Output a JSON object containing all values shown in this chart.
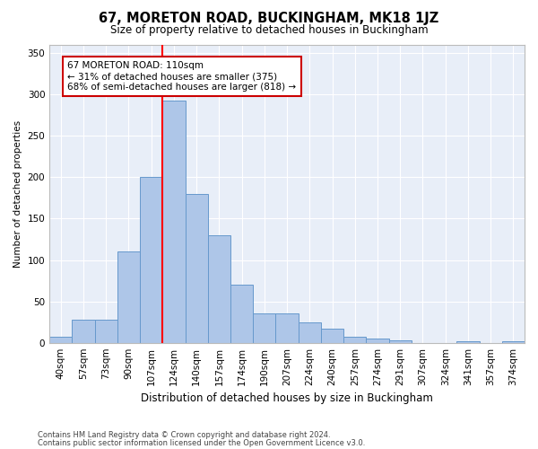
{
  "title": "67, MORETON ROAD, BUCKINGHAM, MK18 1JZ",
  "subtitle": "Size of property relative to detached houses in Buckingham",
  "xlabel": "Distribution of detached houses by size in Buckingham",
  "ylabel": "Number of detached properties",
  "categories": [
    "40sqm",
    "57sqm",
    "73sqm",
    "90sqm",
    "107sqm",
    "124sqm",
    "140sqm",
    "157sqm",
    "174sqm",
    "190sqm",
    "207sqm",
    "224sqm",
    "240sqm",
    "257sqm",
    "274sqm",
    "291sqm",
    "307sqm",
    "324sqm",
    "341sqm",
    "357sqm",
    "374sqm"
  ],
  "values": [
    7,
    28,
    28,
    110,
    200,
    293,
    180,
    130,
    70,
    35,
    35,
    25,
    17,
    7,
    5,
    3,
    0,
    0,
    2,
    0,
    2
  ],
  "bar_color": "#aec6e8",
  "bar_edge_color": "#6699cc",
  "background_color": "#e8eef8",
  "grid_color": "#ffffff",
  "red_line_x": 4.5,
  "annotation_text": "67 MORETON ROAD: 110sqm\n← 31% of detached houses are smaller (375)\n68% of semi-detached houses are larger (818) →",
  "annotation_box_color": "#ffffff",
  "annotation_box_edge_color": "#cc0000",
  "ylim": [
    0,
    360
  ],
  "yticks": [
    0,
    50,
    100,
    150,
    200,
    250,
    300,
    350
  ],
  "footer1": "Contains HM Land Registry data © Crown copyright and database right 2024.",
  "footer2": "Contains public sector information licensed under the Open Government Licence v3.0.",
  "title_fontsize": 10.5,
  "subtitle_fontsize": 8.5,
  "xlabel_fontsize": 8.5,
  "ylabel_fontsize": 7.5,
  "tick_fontsize": 7.5,
  "annotation_fontsize": 7.5,
  "footer_fontsize": 6.0
}
